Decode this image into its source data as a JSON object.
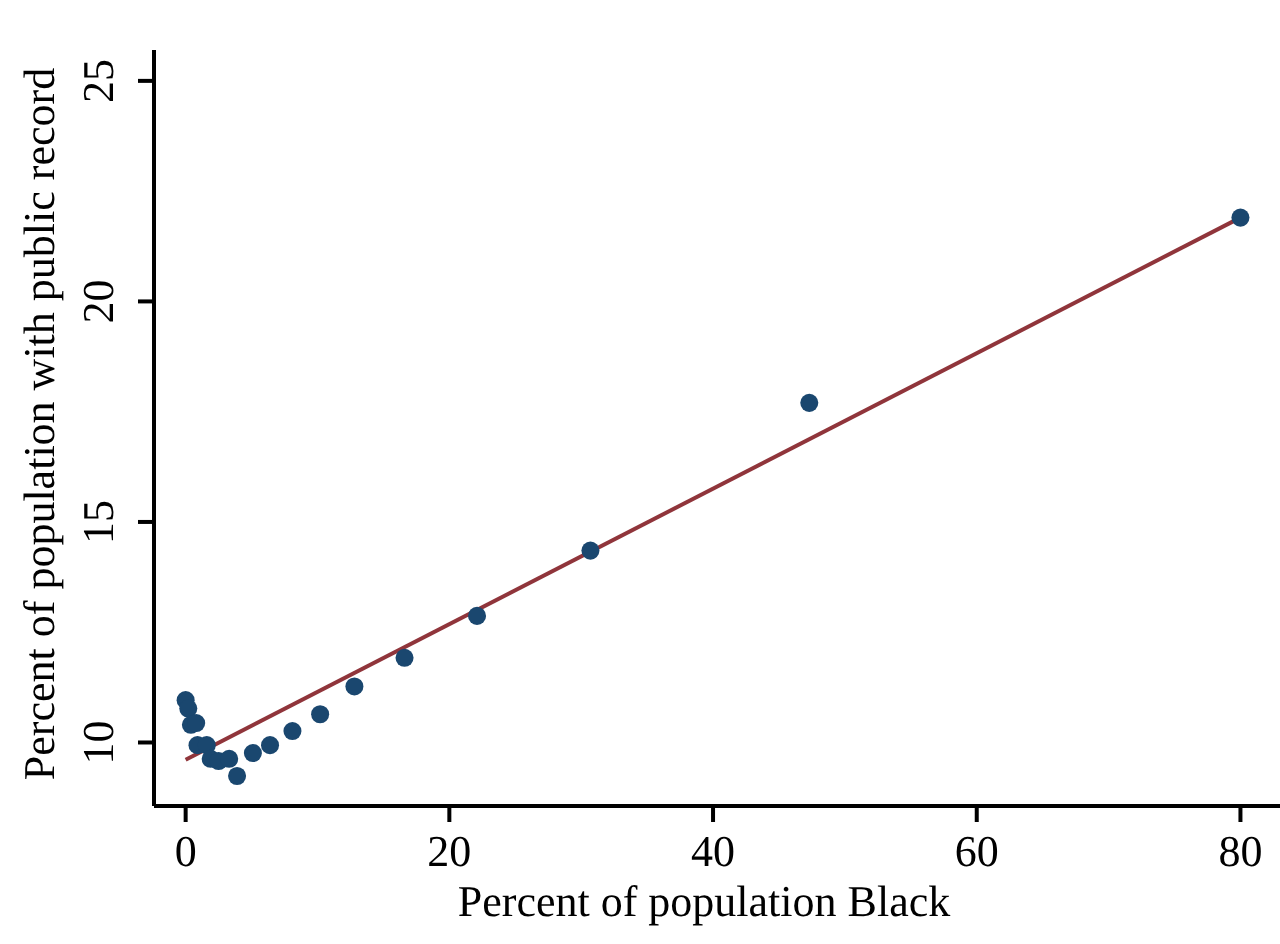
{
  "chart_data": {
    "type": "scatter",
    "xlabel": "Percent of population Black",
    "ylabel": "Percent of population with public record",
    "xlim": [
      -2.4,
      83
    ],
    "ylim": [
      8.56,
      25.7
    ],
    "xticks": [
      0,
      20,
      40,
      60,
      80
    ],
    "yticks": [
      10,
      15,
      20,
      25
    ],
    "series": [
      {
        "type": "scatter",
        "color": "#1a476f",
        "marker": "circle",
        "x": [
          0,
          0.2,
          0.4,
          0.8,
          0.9,
          1.6,
          1.9,
          2.5,
          3.3,
          3.9,
          5.1,
          6.4,
          8.1,
          10.2,
          12.8,
          16.6,
          22.1,
          30.7,
          47.3,
          80
        ],
        "values": [
          10.96,
          10.77,
          10.4,
          10.44,
          9.94,
          9.94,
          9.63,
          9.58,
          9.63,
          9.24,
          9.76,
          9.94,
          10.26,
          10.64,
          11.27,
          11.92,
          12.87,
          14.35,
          17.7,
          21.9
        ]
      },
      {
        "type": "line",
        "color": "#90353b",
        "line_style": "solid",
        "x": [
          0,
          80
        ],
        "values": [
          9.61,
          21.9
        ]
      }
    ]
  }
}
